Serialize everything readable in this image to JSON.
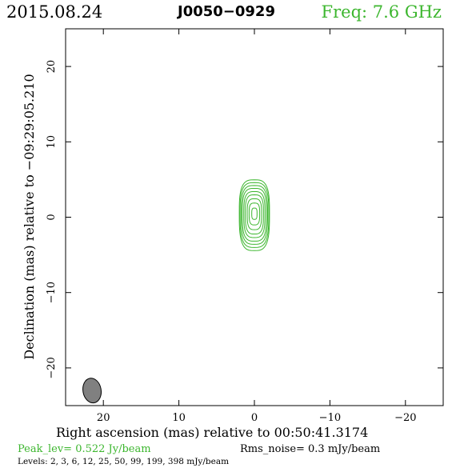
{
  "header": {
    "date": "2015.08.24",
    "source": "J0050−0929",
    "freq_label": "Freq: 7.6 GHz"
  },
  "footer": {
    "peak": "Peak_lev=  0.522 Jy/beam",
    "rms": "Rms_noise=  0.3 mJy/beam",
    "levels": "Levels:   2,   3,   6,  12,  25,  50,  99, 199, 398 mJy/beam"
  },
  "colors": {
    "contour": "#3cb62e",
    "beam_fill": "#808080",
    "freq": "#3cb62e"
  },
  "chart_data": {
    "type": "contour",
    "xlabel": "Right ascension (mas) relative to 00:50:41.3174",
    "ylabel": "Declination (mas) relative to −09:29:05.210",
    "xlim": [
      25,
      -25
    ],
    "ylim": [
      -25,
      25
    ],
    "x_ticks": [
      20,
      10,
      0,
      -10,
      -20
    ],
    "y_ticks": [
      20,
      10,
      0,
      -10,
      -20
    ],
    "x_tick_labels": [
      "20",
      "10",
      "0",
      "−10",
      "−20"
    ],
    "y_tick_labels": [
      "20",
      "10",
      "0",
      "−10",
      "−20"
    ],
    "peak_jy_per_beam": 0.522,
    "rms_noise_mjy_per_beam": 0.3,
    "levels_mjy_per_beam": [
      2,
      3,
      6,
      12,
      25,
      50,
      99,
      199,
      398
    ],
    "source_center": [
      0,
      0.5
    ],
    "contour_semi_axes": [
      [
        2.0,
        4.7
      ],
      [
        1.9,
        4.3
      ],
      [
        1.75,
        3.9
      ],
      [
        1.6,
        3.5
      ],
      [
        1.4,
        3.05
      ],
      [
        1.2,
        2.6
      ],
      [
        0.95,
        2.05
      ],
      [
        0.7,
        1.45
      ],
      [
        0.35,
        0.75
      ]
    ],
    "beam": {
      "x": 21.5,
      "y": -23.0,
      "major": 3.0,
      "minor": 1.5,
      "pa_deg": 10
    }
  }
}
